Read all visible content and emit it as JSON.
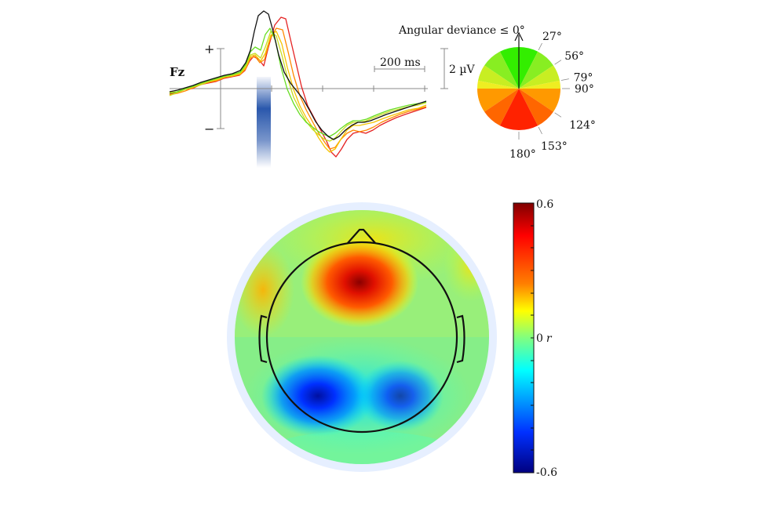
{
  "chart_data": [
    {
      "type": "line",
      "channel_label": "Fz",
      "time_scalebar_label": "200 ms",
      "amplitude_scalebar_label": "2 µV",
      "polarity_labels": {
        "positive": "+",
        "negative": "−"
      },
      "highlight_color": "#1f4fa8",
      "series_colors": [
        "#111111",
        "#66dd22",
        "#c8dd22",
        "#f5c400",
        "#ff8800",
        "#ee2222"
      ]
    },
    {
      "type": "pie",
      "title": "Angular deviance ≤ 0°",
      "boundary_labels": [
        "27°",
        "56°",
        "79°",
        "90°",
        "124°",
        "153°",
        "180°"
      ],
      "boundary_angles_deg": [
        27,
        56,
        79,
        90,
        124,
        153,
        180
      ],
      "bin_colors": [
        "#33ee00",
        "#88ee22",
        "#c8ee22",
        "#eeee22",
        "#ff9900",
        "#ff6600",
        "#ff2200"
      ]
    },
    {
      "type": "heatmap",
      "colorbar": {
        "max_label": "0.6",
        "mid_label": "0",
        "mid_symbol": "r",
        "min_label": "-0.6",
        "range": [
          -0.6,
          0.6
        ]
      },
      "colors": {
        "max": "#7f0000",
        "high": "#ff2000",
        "mid_high": "#ffff00",
        "mid": "#80ff80",
        "mid_low": "#00ffff",
        "low": "#0030ff",
        "min": "#00007f"
      }
    }
  ]
}
